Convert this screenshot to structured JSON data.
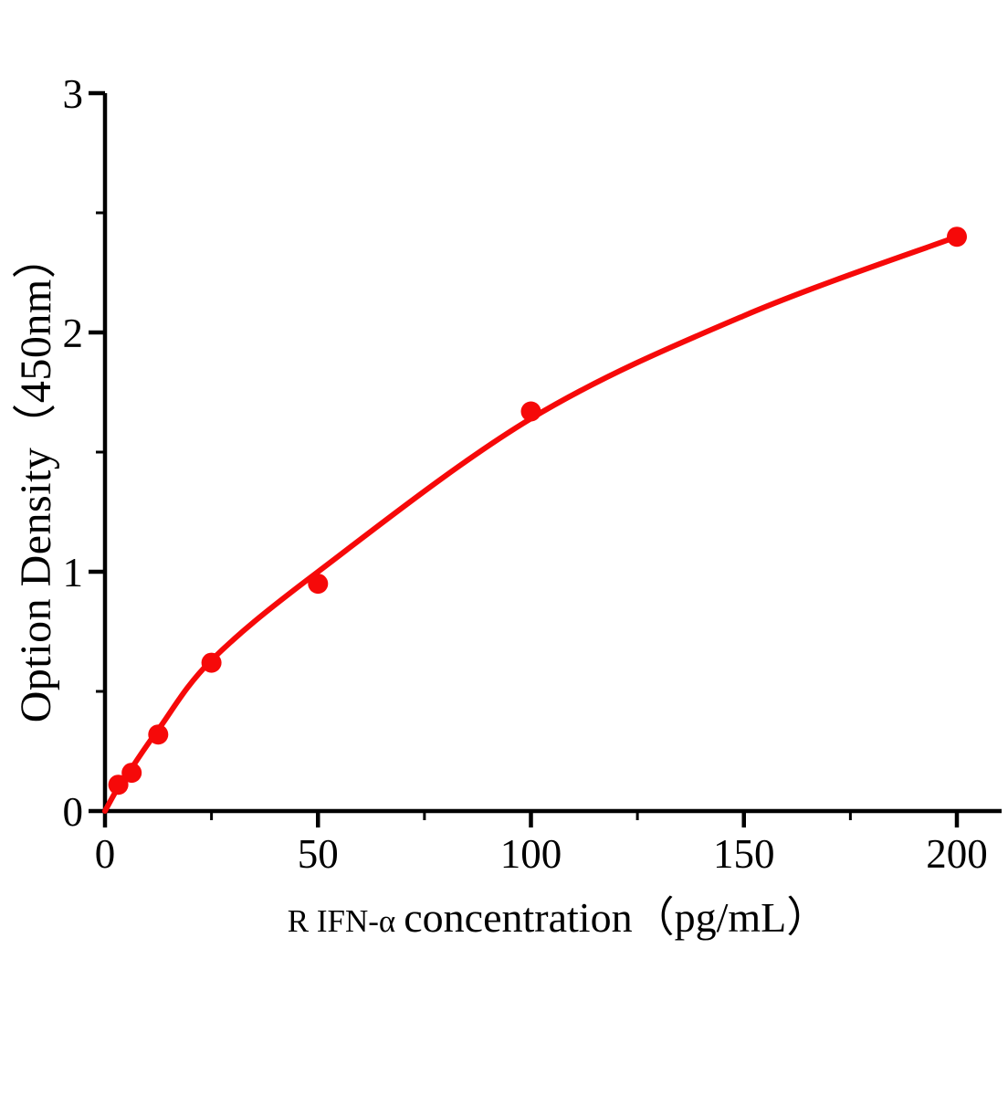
{
  "chart_data": {
    "type": "scatter",
    "description": "ELISA standard curve: optical density vs concentration with fitted curve",
    "ylabel": "Option Density（450nm）",
    "xlabel_prefix": "R IFN-α",
    "xlabel_rest": "concentration（pg/mL）",
    "xlim": [
      0,
      200
    ],
    "ylim": [
      0,
      3
    ],
    "x_major_ticks": [
      0,
      50,
      100,
      150,
      200
    ],
    "x_minor_ticks": [
      25,
      75,
      125,
      175
    ],
    "y_major_ticks": [
      0,
      1,
      2,
      3
    ],
    "y_minor_ticks": [
      0.5,
      1.5,
      2.5
    ],
    "grid": false,
    "legend": null,
    "points": [
      {
        "x": 3.125,
        "y": 0.11
      },
      {
        "x": 6.25,
        "y": 0.16
      },
      {
        "x": 12.5,
        "y": 0.32
      },
      {
        "x": 25,
        "y": 0.62
      },
      {
        "x": 50,
        "y": 0.95
      },
      {
        "x": 100,
        "y": 1.67
      },
      {
        "x": 200,
        "y": 2.4
      }
    ],
    "fit_curve": [
      {
        "x": 0,
        "y": 0.0
      },
      {
        "x": 3.125,
        "y": 0.1
      },
      {
        "x": 6.25,
        "y": 0.18
      },
      {
        "x": 12.5,
        "y": 0.34
      },
      {
        "x": 25,
        "y": 0.63
      },
      {
        "x": 50,
        "y": 1.0
      },
      {
        "x": 100,
        "y": 1.64
      },
      {
        "x": 150,
        "y": 2.07
      },
      {
        "x": 200,
        "y": 2.4
      }
    ],
    "colors": {
      "curve": "#f60909",
      "marker": "#f60909",
      "axis": "#000000",
      "tick_label": "#000000",
      "background": "#ffffff"
    }
  }
}
